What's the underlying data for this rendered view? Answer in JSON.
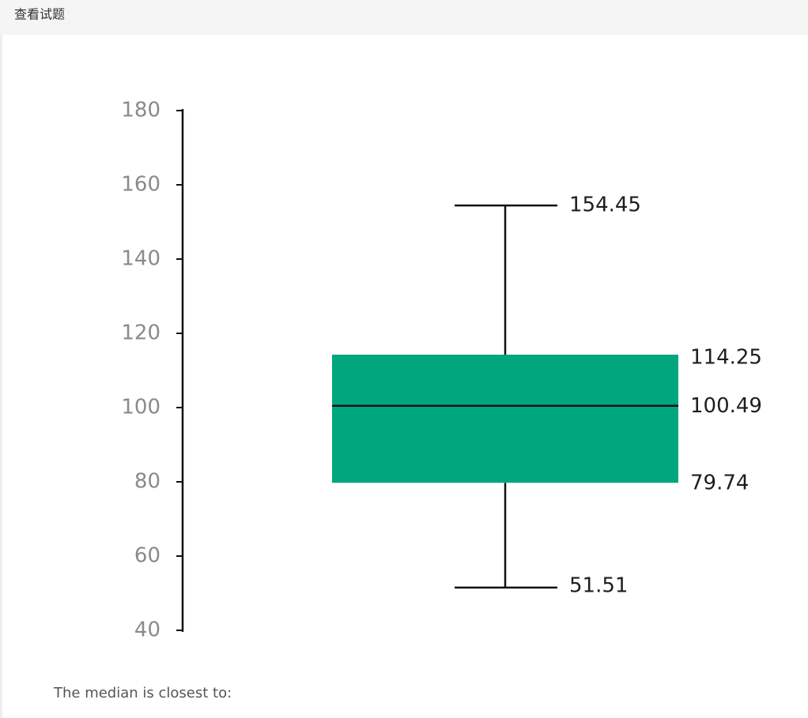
{
  "header": {
    "title": "查看试题"
  },
  "chart_data": {
    "type": "box",
    "min": 51.51,
    "q1": 79.74,
    "median": 100.49,
    "q3": 114.25,
    "max": 154.45,
    "color": "#00a67e",
    "ylim": [
      40,
      180
    ],
    "yticks": [
      40,
      60,
      80,
      100,
      120,
      140,
      160,
      180
    ]
  },
  "question": {
    "text": "The median is closest to:"
  }
}
